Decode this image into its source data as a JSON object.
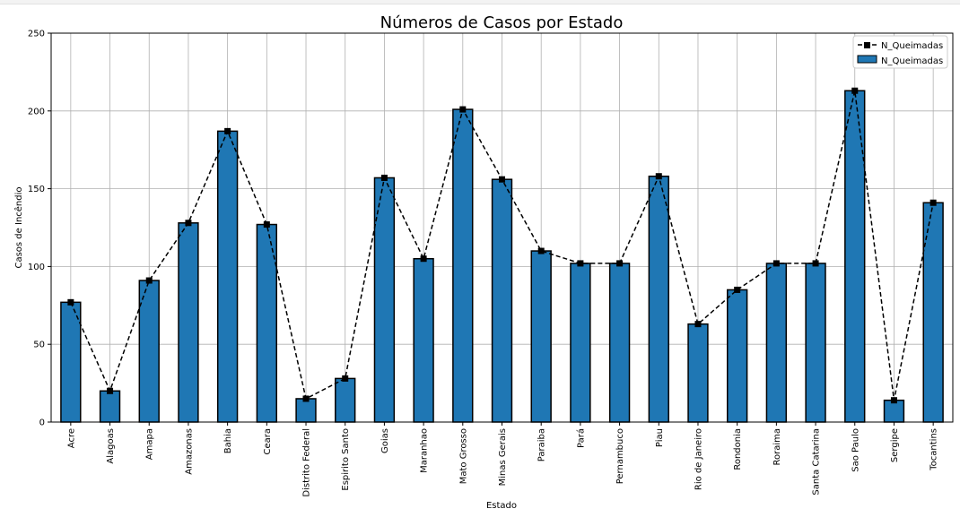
{
  "chart_data": {
    "type": "bar",
    "title": "Números de Casos por Estado",
    "xlabel": "Estado",
    "ylabel": "Casos de Incêndio",
    "ylim": [
      0,
      250
    ],
    "yticks": [
      0,
      50,
      100,
      150,
      200,
      250
    ],
    "grid": true,
    "legend_position": "top-right",
    "categories": [
      "Acre",
      "Alagoas",
      "Amapa",
      "Amazonas",
      "Bahia",
      "Ceara",
      "Distrito Federal",
      "Espirito Santo",
      "Goias",
      "Maranhao",
      "Mato Grosso",
      "Minas Gerais",
      "Paraiba",
      "Pará",
      "Pernambuco",
      "Piau",
      "Rio de Janeiro",
      "Rondonia",
      "Roraima",
      "Santa Catarina",
      "Sao Paulo",
      "Sergipe",
      "Tocantins"
    ],
    "series": [
      {
        "name": "N_Queimadas",
        "kind": "line",
        "style": "dashed",
        "marker": "square",
        "color": "#000000",
        "values": [
          77,
          20,
          91,
          128,
          187,
          127,
          15,
          28,
          157,
          105,
          201,
          156,
          110,
          102,
          102,
          158,
          63,
          85,
          102,
          102,
          213,
          14,
          141
        ]
      },
      {
        "name": "N_Queimadas",
        "kind": "bar",
        "color": "#1f77b4",
        "edgecolor": "#000000",
        "values": [
          77,
          20,
          91,
          128,
          187,
          127,
          15,
          28,
          157,
          105,
          201,
          156,
          110,
          102,
          102,
          158,
          63,
          85,
          102,
          102,
          213,
          14,
          141
        ]
      }
    ]
  }
}
